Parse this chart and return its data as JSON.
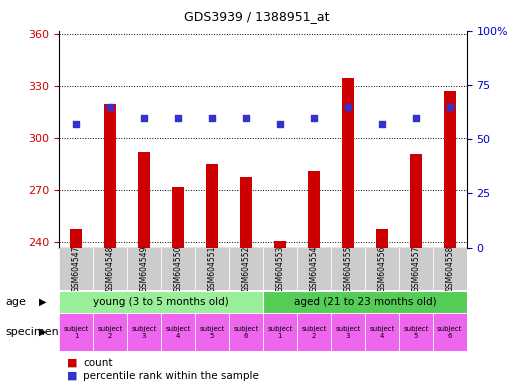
{
  "title": "GDS3939 / 1388951_at",
  "samples": [
    "GSM604547",
    "GSM604548",
    "GSM604549",
    "GSM604550",
    "GSM604551",
    "GSM604552",
    "GSM604553",
    "GSM604554",
    "GSM604555",
    "GSM604556",
    "GSM604557",
    "GSM604558"
  ],
  "counts": [
    248,
    320,
    292,
    272,
    285,
    278,
    241,
    281,
    335,
    248,
    291,
    327
  ],
  "percentiles": [
    57,
    65,
    60,
    60,
    60,
    60,
    57,
    60,
    65,
    57,
    60,
    65
  ],
  "ylim_left": [
    237,
    362
  ],
  "ylim_right": [
    0,
    100
  ],
  "yticks_left": [
    240,
    270,
    300,
    330,
    360
  ],
  "yticks_right": [
    0,
    25,
    50,
    75,
    100
  ],
  "bar_color": "#cc0000",
  "dot_color": "#3333cc",
  "age_groups": [
    {
      "label": "young (3 to 5 months old)",
      "start": 0,
      "end": 6,
      "color": "#99ee99"
    },
    {
      "label": "aged (21 to 23 months old)",
      "start": 6,
      "end": 12,
      "color": "#55cc55"
    }
  ],
  "specimen_labels": [
    "subject\n1",
    "subject\n2",
    "subject\n3",
    "subject\n4",
    "subject\n5",
    "subject\n6",
    "subject\n1",
    "subject\n2",
    "subject\n3",
    "subject\n4",
    "subject\n5",
    "subject\n6"
  ],
  "specimen_color": "#ee66ee",
  "tick_color_left": "#cc0000",
  "tick_color_right": "#0000cc",
  "xticklabel_bg": "#cccccc",
  "age_label": "age",
  "specimen_label": "specimen"
}
